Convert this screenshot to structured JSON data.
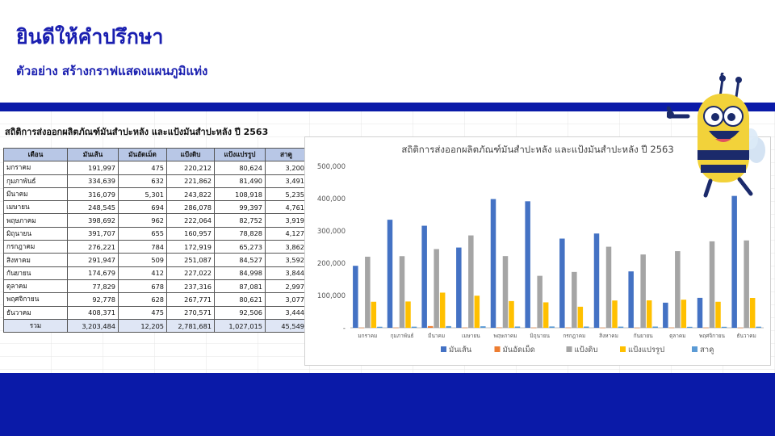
{
  "slide": {
    "title": "ยินดีให้คำปรึกษา",
    "subtitle": "ตัวอย่าง สร้างกราฟแสดงแผนภูมิแท่ง"
  },
  "sheet": {
    "title": "สถิติการส่งออกผลิตภัณฑ์มันสำปะหลัง และแป้งมันสำปะหลัง ปี 2563",
    "columns": [
      "เดือน",
      "มันเส้น",
      "มันอัดเม็ด",
      "แป้งดิบ",
      "แป้งแปรรูป",
      "สาคู"
    ],
    "rows": [
      [
        "มกราคม",
        "191,997",
        "475",
        "220,212",
        "80,624",
        "3,200"
      ],
      [
        "กุมภาพันธ์",
        "334,639",
        "632",
        "221,862",
        "81,490",
        "3,491"
      ],
      [
        "มีนาคม",
        "316,079",
        "5,301",
        "243,822",
        "108,918",
        "5,235"
      ],
      [
        "เมษายน",
        "248,545",
        "694",
        "286,078",
        "99,397",
        "4,761"
      ],
      [
        "พฤษภาคม",
        "398,692",
        "962",
        "222,064",
        "82,752",
        "3,919"
      ],
      [
        "มิถุนายน",
        "391,707",
        "655",
        "160,957",
        "78,828",
        "4,127"
      ],
      [
        "กรกฎาคม",
        "276,221",
        "784",
        "172,919",
        "65,273",
        "3,862"
      ],
      [
        "สิงหาคม",
        "291,947",
        "509",
        "251,087",
        "84,527",
        "3,592"
      ],
      [
        "กันยายน",
        "174,679",
        "412",
        "227,022",
        "84,998",
        "3,844"
      ],
      [
        "ตุลาคม",
        "77,829",
        "678",
        "237,316",
        "87,081",
        "2,997"
      ],
      [
        "พฤศจิกายน",
        "92,778",
        "628",
        "267,771",
        "80,621",
        "3,077"
      ],
      [
        "ธันวาคม",
        "408,371",
        "475",
        "270,571",
        "92,506",
        "3,444"
      ]
    ],
    "total": [
      "รวม",
      "3,203,484",
      "12,205",
      "2,781,681",
      "1,027,015",
      "45,549"
    ]
  },
  "chart_data": {
    "type": "bar",
    "title": "สถิติการส่งออกผลิตภัณฑ์มันสำปะหลัง และแป้งมันสำปะหลัง ปี 2563",
    "categories": [
      "มกราคม",
      "กุมภาพันธ์",
      "มีนาคม",
      "เมษายน",
      "พฤษภาคม",
      "มิถุนายน",
      "กรกฎาคม",
      "สิงหาคม",
      "กันยายน",
      "ตุลาคม",
      "พฤศจิกายน",
      "ธันวาคม"
    ],
    "series": [
      {
        "name": "มันเส้น",
        "color": "#4472c4",
        "values": [
          191997,
          334639,
          316079,
          248545,
          398692,
          391707,
          276221,
          291947,
          174679,
          77829,
          92778,
          408371
        ]
      },
      {
        "name": "มันอัดเม็ด",
        "color": "#ed7d31",
        "values": [
          475,
          632,
          5301,
          694,
          962,
          655,
          784,
          509,
          412,
          678,
          628,
          475
        ]
      },
      {
        "name": "แป้งดิบ",
        "color": "#a5a5a5",
        "values": [
          220212,
          221862,
          243822,
          286078,
          222064,
          160957,
          172919,
          251087,
          227022,
          237316,
          267771,
          270571
        ]
      },
      {
        "name": "แป้งแปรรูป",
        "color": "#ffc000",
        "values": [
          80624,
          81490,
          108918,
          99397,
          82752,
          78828,
          65273,
          84527,
          84998,
          87081,
          80621,
          92506
        ]
      },
      {
        "name": "สาคู",
        "color": "#5b9bd5",
        "values": [
          3200,
          3491,
          5235,
          4761,
          3919,
          4127,
          3862,
          3592,
          3844,
          2997,
          3077,
          3444
        ]
      }
    ],
    "yticks": [
      "500,000",
      "400,000",
      "300,000",
      "200,000",
      "100,000",
      "-"
    ],
    "ylim": [
      0,
      500000
    ],
    "grid": false,
    "legend": "bottom"
  },
  "mascot": {
    "icon": "bee-mascot-icon"
  }
}
